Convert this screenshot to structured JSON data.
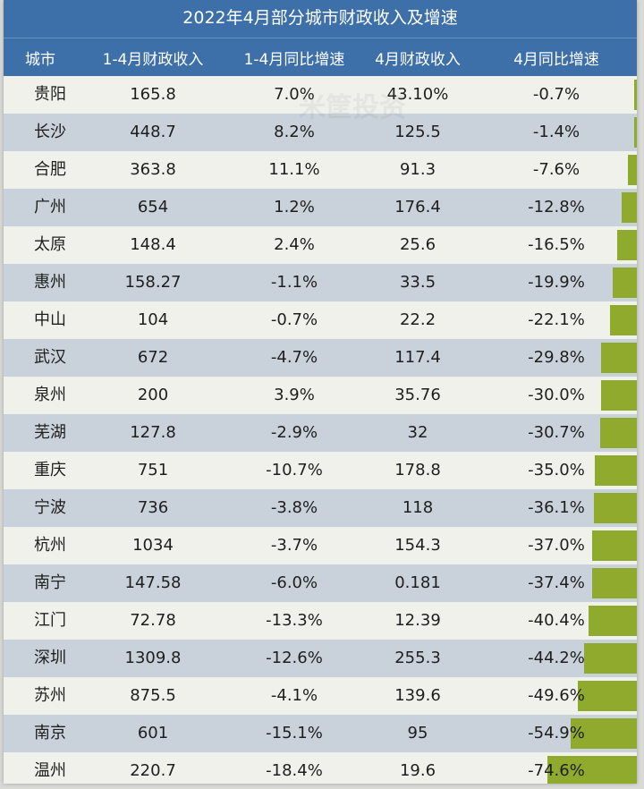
{
  "title": "2022年4月部分城市财政收入及增速",
  "headers": [
    "城市",
    "1-4月财政收入",
    "1-4月同比增速",
    "4月财政收入",
    "4月同比增速"
  ],
  "watermark": "米筐投资",
  "bar_color": "#8faa2c",
  "header_color": "#3d6fa8",
  "rows": [
    {
      "city": "贵阳",
      "rev14": "165.8",
      "g14": "7.0%",
      "rev4": "43.10%",
      "g4": "-0.7%",
      "g4v": -0.7
    },
    {
      "city": "长沙",
      "rev14": "448.7",
      "g14": "8.2%",
      "rev4": "125.5",
      "g4": "-1.4%",
      "g4v": -1.4
    },
    {
      "city": "合肥",
      "rev14": "363.8",
      "g14": "11.1%",
      "rev4": "91.3",
      "g4": "-7.6%",
      "g4v": -7.6
    },
    {
      "city": "广州",
      "rev14": "654",
      "g14": "1.2%",
      "rev4": "176.4",
      "g4": "-12.8%",
      "g4v": -12.8
    },
    {
      "city": "太原",
      "rev14": "148.4",
      "g14": "2.4%",
      "rev4": "25.6",
      "g4": "-16.5%",
      "g4v": -16.5
    },
    {
      "city": "惠州",
      "rev14": "158.27",
      "g14": "-1.1%",
      "rev4": "33.5",
      "g4": "-19.9%",
      "g4v": -19.9
    },
    {
      "city": "中山",
      "rev14": "104",
      "g14": "-0.7%",
      "rev4": "22.2",
      "g4": "-22.1%",
      "g4v": -22.1
    },
    {
      "city": "武汉",
      "rev14": "672",
      "g14": "-4.7%",
      "rev4": "117.4",
      "g4": "-29.8%",
      "g4v": -29.8
    },
    {
      "city": "泉州",
      "rev14": "200",
      "g14": "3.9%",
      "rev4": "35.76",
      "g4": "-30.0%",
      "g4v": -30.0
    },
    {
      "city": "芜湖",
      "rev14": "127.8",
      "g14": "-2.9%",
      "rev4": "32",
      "g4": "-30.7%",
      "g4v": -30.7
    },
    {
      "city": "重庆",
      "rev14": "751",
      "g14": "-10.7%",
      "rev4": "178.8",
      "g4": "-35.0%",
      "g4v": -35.0
    },
    {
      "city": "宁波",
      "rev14": "736",
      "g14": "-3.8%",
      "rev4": "118",
      "g4": "-36.1%",
      "g4v": -36.1
    },
    {
      "city": "杭州",
      "rev14": "1034",
      "g14": "-3.7%",
      "rev4": "154.3",
      "g4": "-37.0%",
      "g4v": -37.0
    },
    {
      "city": "南宁",
      "rev14": "147.58",
      "g14": "-6.0%",
      "rev4": "0.181",
      "g4": "-37.4%",
      "g4v": -37.4
    },
    {
      "city": "江门",
      "rev14": "72.78",
      "g14": "-13.3%",
      "rev4": "12.39",
      "g4": "-40.4%",
      "g4v": -40.4
    },
    {
      "city": "深圳",
      "rev14": "1309.8",
      "g14": "-12.6%",
      "rev4": "255.3",
      "g4": "-44.2%",
      "g4v": -44.2
    },
    {
      "city": "苏州",
      "rev14": "875.5",
      "g14": "-4.1%",
      "rev4": "139.6",
      "g4": "-49.6%",
      "g4v": -49.6
    },
    {
      "city": "南京",
      "rev14": "601",
      "g14": "-15.1%",
      "rev4": "95",
      "g4": "-54.9%",
      "g4v": -54.9
    },
    {
      "city": "温州",
      "rev14": "220.7",
      "g14": "-18.4%",
      "rev4": "19.6",
      "g4": "-74.6%",
      "g4v": -74.6
    }
  ]
}
